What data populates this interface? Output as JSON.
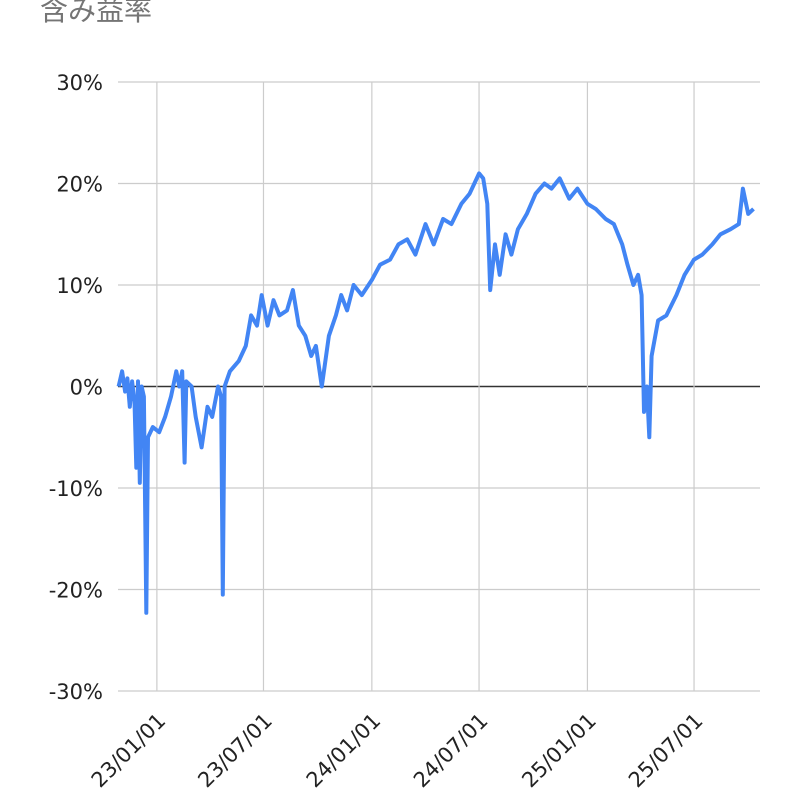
{
  "chart_data": {
    "type": "line",
    "title": "含み益率",
    "x": [
      "22/10/28",
      "22/11/03",
      "22/11/08",
      "22/11/12",
      "22/11/16",
      "22/11/20",
      "22/11/24",
      "22/11/27",
      "22/11/30",
      "22/12/03",
      "22/12/06",
      "22/12/10",
      "22/12/14",
      "22/12/17",
      "22/12/25",
      "23/01/05",
      "23/01/15",
      "23/01/25",
      "23/02/03",
      "23/02/08",
      "23/02/13",
      "23/02/17",
      "23/02/20",
      "23/03/01",
      "23/03/08",
      "23/03/18",
      "23/03/28",
      "23/04/05",
      "23/04/15",
      "23/04/20",
      "23/04/23",
      "23/04/26",
      "23/05/05",
      "23/05/20",
      "23/06/01",
      "23/06/10",
      "23/06/20",
      "23/06/28",
      "23/07/08",
      "23/07/18",
      "23/07/28",
      "23/08/10",
      "23/08/20",
      "23/08/30",
      "23/09/10",
      "23/09/20",
      "23/09/28",
      "23/10/08",
      "23/10/20",
      "23/11/01",
      "23/11/10",
      "23/11/20",
      "23/12/01",
      "23/12/15",
      "24/01/01",
      "24/01/15",
      "24/02/01",
      "24/02/15",
      "24/03/01",
      "24/03/15",
      "24/04/01",
      "24/04/15",
      "24/05/01",
      "24/05/15",
      "24/06/01",
      "24/06/15",
      "24/07/01",
      "24/07/08",
      "24/07/15",
      "24/07/20",
      "24/07/28",
      "24/08/05",
      "24/08/15",
      "24/08/25",
      "24/09/05",
      "24/09/20",
      "24/10/05",
      "24/10/20",
      "24/11/01",
      "24/11/15",
      "24/12/01",
      "24/12/15",
      "25/01/01",
      "25/01/15",
      "25/02/01",
      "25/02/15",
      "25/03/01",
      "25/03/10",
      "25/03/20",
      "25/03/28",
      "25/04/03",
      "25/04/07",
      "25/04/12",
      "25/04/16",
      "25/04/20",
      "25/05/01",
      "25/05/15",
      "25/06/01",
      "25/06/15",
      "25/07/01",
      "25/07/15",
      "25/08/01",
      "25/08/15",
      "25/09/01",
      "25/09/15",
      "25/09/22",
      "25/10/01",
      "25/10/10"
    ],
    "series": [
      {
        "color": "#4285f4",
        "values": [
          0,
          1.5,
          -0.5,
          0.8,
          -2,
          0.5,
          -1.5,
          -8,
          0.5,
          -9.5,
          0,
          -1,
          -22.3,
          -5,
          -4,
          -4.5,
          -3,
          -1,
          1.5,
          0,
          1.5,
          -7.5,
          0.5,
          0,
          -3,
          -6,
          -2,
          -3,
          0,
          -1,
          -20.5,
          0,
          1.5,
          2.5,
          4,
          7,
          6,
          9,
          6,
          8.5,
          7,
          7.5,
          9.5,
          6,
          5,
          3,
          4,
          0,
          5,
          7,
          9,
          7.5,
          10,
          9,
          10.5,
          12,
          12.5,
          14,
          14.5,
          13,
          16,
          14,
          16.5,
          16,
          18,
          19,
          21,
          20.5,
          18,
          9.5,
          14,
          11,
          15,
          13,
          15.5,
          17,
          19,
          20,
          19.5,
          20.5,
          18.5,
          19.5,
          18,
          17.5,
          16.5,
          16,
          14,
          12,
          10,
          11,
          9,
          -2.5,
          0,
          -5,
          3,
          6.5,
          7,
          9,
          11,
          12.5,
          13,
          14,
          15,
          15.5,
          16,
          19.5,
          17,
          17.5
        ]
      }
    ],
    "xlim": [
      "22/10/27",
      "25/10/21"
    ],
    "xticks": [
      "23/01/01",
      "23/07/01",
      "24/01/01",
      "24/07/01",
      "25/01/01",
      "25/07/01"
    ],
    "ylim": [
      -30,
      30
    ],
    "yticks": [
      {
        "value": -30,
        "label": "-30%"
      },
      {
        "value": -20,
        "label": "-20%"
      },
      {
        "value": -10,
        "label": "-10%"
      },
      {
        "value": 0,
        "label": "0%"
      },
      {
        "value": 10,
        "label": "10%"
      },
      {
        "value": 20,
        "label": "20%"
      },
      {
        "value": 30,
        "label": "30%"
      }
    ],
    "grid": true
  }
}
